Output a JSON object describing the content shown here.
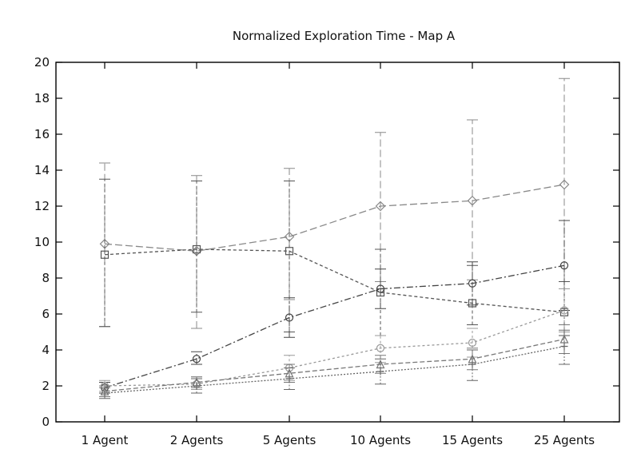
{
  "chart_data": {
    "type": "line",
    "title": "Normalized Exploration Time - Map A",
    "xlabel": "",
    "ylabel": "",
    "categories": [
      "1 Agent",
      "2 Agents",
      "5 Agents",
      "10 Agents",
      "15 Agents",
      "25 Agents"
    ],
    "ylim": [
      0,
      20
    ],
    "yticks": [
      0,
      2,
      4,
      6,
      8,
      10,
      12,
      14,
      16,
      18,
      20
    ],
    "grid": false,
    "series": [
      {
        "values": [
          9.9,
          9.5,
          10.3,
          12.0,
          12.3,
          13.2
        ],
        "err_low": [
          5.3,
          5.2,
          6.8,
          7.8,
          7.9,
          7.4
        ],
        "err_high": [
          14.4,
          13.7,
          14.1,
          16.1,
          16.8,
          19.1
        ],
        "color": "#888888",
        "dash": "9,4",
        "marker": "diamond"
      },
      {
        "values": [
          9.3,
          9.6,
          9.5,
          7.2,
          6.6,
          6.1
        ],
        "err_low": [
          5.3,
          6.1,
          5.0,
          4.8,
          5.4,
          4.8
        ],
        "err_high": [
          13.5,
          13.4,
          13.4,
          9.6,
          8.7,
          7.8
        ],
        "color": "#555555",
        "dash": "4,3",
        "marker": "square"
      },
      {
        "values": [
          1.9,
          3.5,
          5.8,
          7.4,
          7.7,
          8.7
        ],
        "err_low": [
          1.6,
          3.2,
          4.7,
          6.3,
          6.5,
          6.2
        ],
        "err_high": [
          2.2,
          3.9,
          6.9,
          8.5,
          8.9,
          11.2
        ],
        "color": "#444444",
        "dash": "8,3,2,3",
        "marker": "circle"
      },
      {
        "values": [
          2.0,
          2.1,
          3.0,
          4.1,
          4.4,
          6.2
        ],
        "err_low": [
          1.7,
          1.8,
          2.3,
          3.3,
          3.6,
          5.0
        ],
        "err_high": [
          2.3,
          2.5,
          3.7,
          4.8,
          5.2,
          7.4
        ],
        "color": "#999999",
        "dash": "3,3",
        "marker": "circle"
      },
      {
        "values": [
          1.7,
          2.2,
          2.7,
          3.2,
          3.5,
          4.6
        ],
        "err_low": [
          1.4,
          1.9,
          2.2,
          2.7,
          2.9,
          3.8
        ],
        "err_high": [
          2.0,
          2.5,
          3.2,
          3.7,
          4.1,
          5.4
        ],
        "color": "#777777",
        "dash": "6,3",
        "marker": "triangle"
      },
      {
        "values": [
          1.6,
          2.0,
          2.4,
          2.8,
          3.2,
          4.2
        ],
        "err_low": [
          1.3,
          1.6,
          1.8,
          2.1,
          2.3,
          3.2
        ],
        "err_high": [
          1.9,
          2.4,
          3.0,
          3.5,
          4.0,
          5.1
        ],
        "color": "#666666",
        "dash": "2,2",
        "marker": "plus"
      }
    ]
  }
}
